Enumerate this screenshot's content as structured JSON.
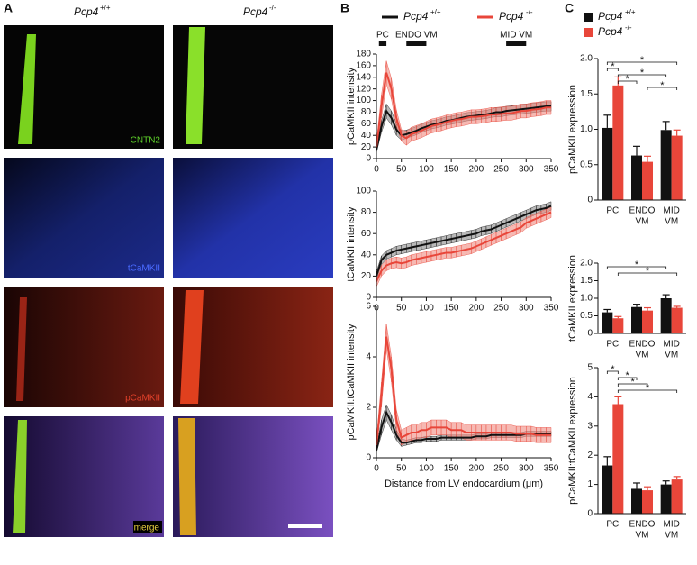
{
  "panel_labels": [
    "A",
    "B",
    "C"
  ],
  "images": {
    "columns": [
      {
        "base": "Pcp4",
        "sup": "+/+"
      },
      {
        "base": "Pcp4",
        "sup": "-/-"
      }
    ],
    "rows": [
      "CNTN2",
      "tCaMKII",
      "pCaMKII",
      "merge"
    ]
  },
  "chart_data": [
    {
      "type": "line",
      "y_label": "pCaMKII intensity",
      "legend": true,
      "regions": [
        {
          "label": "PC",
          "x": [
            5,
            20
          ]
        },
        {
          "label": "ENDO VM",
          "x": [
            60,
            100
          ]
        },
        {
          "label": "MID VM",
          "x": [
            260,
            300
          ]
        }
      ],
      "x": [
        0,
        10,
        20,
        30,
        40,
        50,
        60,
        70,
        80,
        90,
        100,
        110,
        120,
        130,
        140,
        150,
        160,
        170,
        180,
        190,
        200,
        210,
        220,
        230,
        240,
        250,
        260,
        270,
        280,
        290,
        300,
        310,
        320,
        330,
        340,
        350
      ],
      "xlim": [
        0,
        350
      ],
      "xticks": [
        0,
        50,
        100,
        150,
        200,
        250,
        300,
        350
      ],
      "ylim": [
        0,
        180
      ],
      "yticks": [
        0,
        20,
        40,
        60,
        80,
        100,
        120,
        140,
        160,
        180
      ],
      "series": [
        {
          "name": "Pcp4",
          "name_sup": "+/+",
          "color": "#111111",
          "band_color": "#8a8a8a",
          "values": [
            15,
            55,
            82,
            70,
            50,
            40,
            42,
            45,
            48,
            52,
            55,
            58,
            60,
            62,
            65,
            66,
            68,
            70,
            72,
            73,
            74,
            75,
            76,
            78,
            80,
            80,
            82,
            83,
            84,
            85,
            86,
            87,
            88,
            89,
            90,
            90
          ],
          "error": [
            5,
            10,
            12,
            12,
            10,
            8,
            7,
            7,
            7,
            7,
            7,
            7,
            7,
            7,
            7,
            7,
            7,
            7,
            7,
            7,
            7,
            7,
            7,
            7,
            8,
            8,
            8,
            8,
            8,
            8,
            8,
            8,
            8,
            8,
            8,
            8
          ]
        },
        {
          "name": "Pcp4",
          "name_sup": "-/-",
          "color": "#e8463a",
          "band_color": "#f08a80",
          "values": [
            20,
            90,
            148,
            120,
            70,
            40,
            35,
            42,
            45,
            48,
            52,
            56,
            58,
            60,
            63,
            65,
            67,
            68,
            70,
            72,
            72,
            73,
            74,
            76,
            76,
            77,
            78,
            78,
            80,
            82,
            82,
            84,
            85,
            86,
            88,
            88
          ],
          "error": [
            8,
            20,
            20,
            18,
            14,
            10,
            12,
            12,
            12,
            12,
            12,
            12,
            12,
            12,
            12,
            12,
            12,
            12,
            12,
            12,
            12,
            12,
            12,
            12,
            12,
            12,
            12,
            12,
            12,
            12,
            12,
            12,
            12,
            12,
            12,
            12
          ]
        }
      ]
    },
    {
      "type": "line",
      "y_label": "tCaMKII intensity",
      "x": [
        0,
        10,
        20,
        30,
        40,
        50,
        60,
        70,
        80,
        90,
        100,
        110,
        120,
        130,
        140,
        150,
        160,
        170,
        180,
        190,
        200,
        210,
        220,
        230,
        240,
        250,
        260,
        270,
        280,
        290,
        300,
        310,
        320,
        330,
        340,
        350
      ],
      "xlim": [
        0,
        350
      ],
      "xticks": [
        0,
        50,
        100,
        150,
        200,
        250,
        300,
        350
      ],
      "ylim": [
        0,
        100
      ],
      "yticks": [
        0,
        20,
        40,
        60,
        80,
        100
      ],
      "series": [
        {
          "color": "#111111",
          "band_color": "#8a8a8a",
          "values": [
            20,
            35,
            40,
            42,
            44,
            45,
            46,
            47,
            48,
            49,
            50,
            51,
            52,
            53,
            54,
            55,
            56,
            57,
            58,
            59,
            60,
            62,
            63,
            64,
            66,
            68,
            70,
            72,
            74,
            76,
            78,
            80,
            82,
            83,
            84,
            86
          ],
          "error": [
            4,
            4,
            4,
            4,
            4,
            4,
            4,
            4,
            4,
            4,
            4,
            4,
            4,
            4,
            4,
            4,
            4,
            4,
            4,
            4,
            4,
            4,
            4,
            4,
            4,
            4,
            4,
            4,
            4,
            4,
            4,
            4,
            4,
            4,
            4,
            4
          ]
        },
        {
          "color": "#e8463a",
          "band_color": "#f08a80",
          "values": [
            15,
            25,
            30,
            32,
            33,
            32,
            33,
            35,
            36,
            37,
            38,
            39,
            40,
            41,
            42,
            42,
            43,
            44,
            45,
            46,
            48,
            50,
            52,
            54,
            56,
            58,
            60,
            62,
            64,
            66,
            70,
            72,
            74,
            76,
            78,
            80
          ],
          "error": [
            5,
            5,
            5,
            5,
            5,
            5,
            5,
            5,
            5,
            5,
            5,
            5,
            5,
            5,
            5,
            5,
            5,
            5,
            5,
            5,
            5,
            5,
            5,
            5,
            5,
            5,
            5,
            5,
            5,
            5,
            5,
            5,
            5,
            5,
            5,
            5
          ]
        }
      ]
    },
    {
      "type": "line",
      "y_label": "pCaMKII:tCaMKII intensity",
      "x_label": "Distance from LV  endocardium (μm)",
      "x": [
        0,
        10,
        20,
        30,
        40,
        50,
        60,
        70,
        80,
        90,
        100,
        110,
        120,
        130,
        140,
        150,
        160,
        170,
        180,
        190,
        200,
        210,
        220,
        230,
        240,
        250,
        260,
        270,
        280,
        290,
        300,
        310,
        320,
        330,
        340,
        350
      ],
      "xlim": [
        0,
        350
      ],
      "xticks": [
        0,
        50,
        100,
        150,
        200,
        250,
        300,
        350
      ],
      "ylim": [
        0,
        6
      ],
      "yticks": [
        0,
        2,
        4,
        6
      ],
      "series": [
        {
          "color": "#111111",
          "band_color": "#8a8a8a",
          "values": [
            0.3,
            1.2,
            1.8,
            1.4,
            0.9,
            0.6,
            0.6,
            0.65,
            0.7,
            0.7,
            0.75,
            0.75,
            0.75,
            0.8,
            0.8,
            0.8,
            0.8,
            0.8,
            0.8,
            0.8,
            0.85,
            0.85,
            0.85,
            0.9,
            0.9,
            0.9,
            0.9,
            0.9,
            0.9,
            0.9,
            0.95,
            0.95,
            0.95,
            0.95,
            0.95,
            0.95
          ],
          "error": [
            0.1,
            0.3,
            0.3,
            0.3,
            0.2,
            0.15,
            0.1,
            0.1,
            0.1,
            0.1,
            0.1,
            0.1,
            0.1,
            0.1,
            0.1,
            0.1,
            0.1,
            0.1,
            0.1,
            0.1,
            0.1,
            0.1,
            0.1,
            0.1,
            0.1,
            0.1,
            0.1,
            0.1,
            0.1,
            0.1,
            0.1,
            0.1,
            0.1,
            0.1,
            0.1,
            0.1
          ]
        },
        {
          "color": "#e8463a",
          "band_color": "#f08a80",
          "values": [
            0.5,
            2.5,
            4.8,
            3.5,
            1.5,
            0.8,
            0.9,
            1.0,
            1.0,
            1.1,
            1.1,
            1.2,
            1.2,
            1.2,
            1.2,
            1.1,
            1.1,
            1.1,
            1.0,
            1.0,
            1.0,
            1.0,
            1.0,
            1.0,
            1.0,
            1.0,
            1.0,
            1.0,
            0.95,
            0.95,
            0.95,
            0.95,
            0.9,
            0.9,
            0.9,
            0.9
          ],
          "error": [
            0.2,
            0.5,
            0.5,
            0.5,
            0.4,
            0.3,
            0.3,
            0.3,
            0.3,
            0.3,
            0.3,
            0.3,
            0.3,
            0.3,
            0.3,
            0.3,
            0.3,
            0.3,
            0.3,
            0.3,
            0.3,
            0.3,
            0.3,
            0.3,
            0.3,
            0.3,
            0.3,
            0.3,
            0.3,
            0.3,
            0.3,
            0.3,
            0.3,
            0.3,
            0.3,
            0.3
          ]
        }
      ]
    },
    {
      "type": "bar",
      "y_label": "pCaMKII expression",
      "legend": true,
      "categories": [
        [
          "PC"
        ],
        [
          "ENDO",
          "VM"
        ],
        [
          "MID",
          "VM"
        ]
      ],
      "ylim": [
        0,
        2
      ],
      "yticks": [
        0,
        0.5,
        {
          "value": 1,
          "label": "1.0"
        },
        1.5,
        {
          "value": 2,
          "label": "2.0"
        }
      ],
      "series": [
        {
          "name": "Pcp4",
          "name_sup": "+/+",
          "color": "#111111",
          "values": [
            1.02,
            0.63,
            0.99
          ],
          "error": [
            0.18,
            0.13,
            0.12
          ]
        },
        {
          "name": "Pcp4",
          "name_sup": "-/-",
          "color": "#e8463a",
          "values": [
            1.62,
            0.54,
            0.91
          ],
          "error": [
            0.12,
            0.08,
            0.08
          ]
        }
      ],
      "brackets": [
        {
          "from": [
            0,
            0
          ],
          "to": [
            2,
            1
          ],
          "label": "*"
        },
        {
          "from": [
            0,
            0
          ],
          "to": [
            0,
            1
          ],
          "label": "*"
        },
        {
          "from": [
            0,
            1
          ],
          "to": [
            2,
            0
          ],
          "label": "*"
        },
        {
          "from": [
            0,
            1
          ],
          "to": [
            1,
            0
          ],
          "label": "*"
        },
        {
          "from": [
            1,
            1
          ],
          "to": [
            2,
            1
          ],
          "label": "*"
        }
      ]
    },
    {
      "type": "bar",
      "y_label": "tCaMKII expression",
      "categories": [
        [
          "PC"
        ],
        [
          "ENDO",
          "VM"
        ],
        [
          "MID",
          "VM"
        ]
      ],
      "ylim": [
        0,
        2
      ],
      "yticks": [
        0,
        0.5,
        {
          "value": 1,
          "label": "1.0"
        },
        1.5,
        {
          "value": 2,
          "label": "2.0"
        }
      ],
      "series": [
        {
          "color": "#111111",
          "values": [
            0.6,
            0.75,
            1.0
          ],
          "error": [
            0.08,
            0.08,
            0.1
          ]
        },
        {
          "color": "#e8463a",
          "values": [
            0.43,
            0.65,
            0.73
          ],
          "error": [
            0.05,
            0.08,
            0.04
          ]
        }
      ],
      "brackets": [
        {
          "from": [
            0,
            0
          ],
          "to": [
            2,
            0
          ],
          "label": "*"
        },
        {
          "from": [
            0,
            1
          ],
          "to": [
            2,
            1
          ],
          "label": "*"
        }
      ]
    },
    {
      "type": "bar",
      "y_label": "pCaMKII:tCaMKII expression",
      "categories": [
        [
          "PC"
        ],
        [
          "ENDO",
          "VM"
        ],
        [
          "MID",
          "VM"
        ]
      ],
      "ylim": [
        0,
        5
      ],
      "yticks": [
        0,
        1,
        2,
        3,
        4,
        5
      ],
      "series": [
        {
          "color": "#111111",
          "values": [
            1.65,
            0.85,
            1.0
          ],
          "error": [
            0.3,
            0.2,
            0.12
          ]
        },
        {
          "color": "#e8463a",
          "values": [
            3.75,
            0.8,
            1.17
          ],
          "error": [
            0.25,
            0.12,
            0.1
          ]
        }
      ],
      "brackets": [
        {
          "from": [
            0,
            0
          ],
          "to": [
            0,
            1
          ],
          "label": "*"
        },
        {
          "from": [
            0,
            1
          ],
          "to": [
            1,
            0
          ],
          "label": "*"
        },
        {
          "from": [
            0,
            1
          ],
          "to": [
            1,
            1
          ],
          "label": "*"
        },
        {
          "from": [
            0,
            1
          ],
          "to": [
            2,
            1
          ],
          "label": "*"
        }
      ]
    }
  ]
}
